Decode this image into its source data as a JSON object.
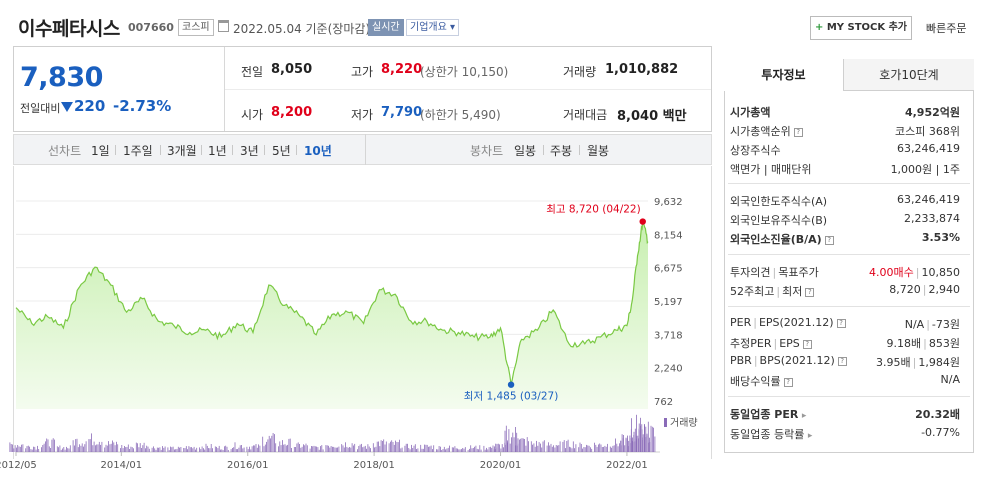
{
  "header": {
    "company_name": "이수페타시스",
    "stock_code": "007660",
    "market_badge": "코스피",
    "date_text": "2022.05.04 기준(장마감)",
    "live_badge": "실시간",
    "corp_badge": "기업개요",
    "mystock_plus": "+",
    "mystock_label": "MY STOCK 추가",
    "quick_order": "빠른주문"
  },
  "quote": {
    "price": "7,830",
    "change_label": "전일대비",
    "change_value": "220",
    "change_pct": "-2.73%",
    "prev_close_label": "전일",
    "prev_close": "8,050",
    "open_label": "시가",
    "open": "8,200",
    "high_label": "고가",
    "high": "8,220",
    "upper_limit": "(상한가 10,150)",
    "low_label": "저가",
    "low": "7,790",
    "lower_limit": "(하한가 5,490)",
    "volume_label": "거래량",
    "volume": "1,010,882",
    "amount_label": "거래대금",
    "amount": "8,040",
    "amount_unit": "백만"
  },
  "chart_tabs": {
    "line_label": "선차트",
    "periods": [
      "1일",
      "1주일",
      "3개월",
      "1년",
      "3년",
      "5년",
      "10년"
    ],
    "active_period": "10년",
    "candle_label": "봉차트",
    "candles": [
      "일봉",
      "주봉",
      "월봉"
    ]
  },
  "chart_data": {
    "type": "area",
    "title": "",
    "x_ticks": [
      "2012/05",
      "2014/01",
      "2016/01",
      "2018/01",
      "2020/01",
      "2022/01"
    ],
    "y_ticks": [
      9632,
      8154,
      6675,
      5197,
      3718,
      2240,
      762
    ],
    "ylim": [
      762,
      9632
    ],
    "max_label": "최고 8,720 (04/22)",
    "min_label": "최저 1,485 (03/27)",
    "max_value": 8720,
    "min_value": 1485,
    "volume_legend": "거래량",
    "series": [
      {
        "x": [
          "2012/05",
          "2012/08",
          "2012/11",
          "2013/02",
          "2013/05",
          "2013/08",
          "2013/11",
          "2014/02",
          "2014/05",
          "2014/08",
          "2014/11",
          "2015/02",
          "2015/05",
          "2015/08",
          "2015/11",
          "2016/02",
          "2016/05",
          "2016/08",
          "2016/11",
          "2017/02",
          "2017/05",
          "2017/08",
          "2017/11",
          "2018/02",
          "2018/05",
          "2018/08",
          "2018/11",
          "2019/02",
          "2019/05",
          "2019/08",
          "2019/11",
          "2020/01",
          "2020/03",
          "2020/05",
          "2020/08",
          "2020/11",
          "2021/02",
          "2021/05",
          "2021/08",
          "2021/11",
          "2022/01",
          "2022/02",
          "2022/03",
          "2022/04",
          "2022/05"
        ],
        "values": [
          4900,
          4200,
          4500,
          4000,
          5800,
          6700,
          5900,
          4700,
          5300,
          4300,
          4100,
          3800,
          3900,
          3600,
          4200,
          3800,
          5900,
          5000,
          4500,
          3700,
          4600,
          4700,
          4200,
          5700,
          5500,
          4300,
          4300,
          3900,
          3800,
          3600,
          3600,
          4000,
          1485,
          3500,
          3900,
          4800,
          3300,
          3300,
          3600,
          3900,
          4100,
          5200,
          7200,
          8720,
          7830
        ]
      }
    ],
    "volume": [
      8,
      6,
      10,
      5,
      12,
      14,
      9,
      6,
      8,
      5,
      4,
      5,
      6,
      5,
      7,
      6,
      14,
      10,
      7,
      5,
      8,
      9,
      6,
      10,
      9,
      6,
      6,
      5,
      5,
      5,
      5,
      7,
      20,
      12,
      9,
      8,
      9,
      7,
      8,
      10,
      13,
      18,
      25,
      28,
      20
    ]
  },
  "invest_panel": {
    "tab_info": "투자정보",
    "tab_orderbook": "호가10단계",
    "rows_group1": [
      {
        "label": "시가총액",
        "value": "4,952억원"
      },
      {
        "label": "시가총액순위",
        "value": "코스피 368위"
      },
      {
        "label": "상장주식수",
        "value": "63,246,419"
      },
      {
        "label": "액면가 | 매매단위",
        "value": "1,000원 | 1주"
      }
    ],
    "rows_group2": [
      {
        "label": "외국인한도주식수(A)",
        "value": "63,246,419"
      },
      {
        "label": "외국인보유주식수(B)",
        "value": "2,233,874"
      },
      {
        "label": "외국인소진율(B/A)",
        "value": "3.53%"
      }
    ],
    "opinion_label": "투자의견",
    "target_label": "목표주가",
    "opinion_value": "4.00매수",
    "target_value": "10,850",
    "week52_label": "52주최고",
    "week52_low_label": "최저",
    "week52_high": "8,720",
    "week52_low": "2,940",
    "per_label": "PER",
    "eps_label": "EPS(2021.12)",
    "per_value": "N/A",
    "eps_value": "-73원",
    "est_per_label": "추정PER",
    "est_eps_label": "EPS",
    "est_per_value": "9.18배",
    "est_eps_value": "853원",
    "pbr_label": "PBR",
    "bps_label": "BPS(2021.12)",
    "pbr_value": "3.95배",
    "bps_value": "1,984원",
    "div_label": "배당수익률",
    "div_value": "N/A",
    "sector_per_label": "동일업종 PER",
    "sector_per_value": "20.32배",
    "sector_chg_label": "동일업종 등락률",
    "sector_chg_value": "-0.77%"
  },
  "colors": {
    "up": "#e0001a",
    "down": "#1a5fbf",
    "chart_line": "#7ac943",
    "volume_bar": "#8a6bb8"
  }
}
